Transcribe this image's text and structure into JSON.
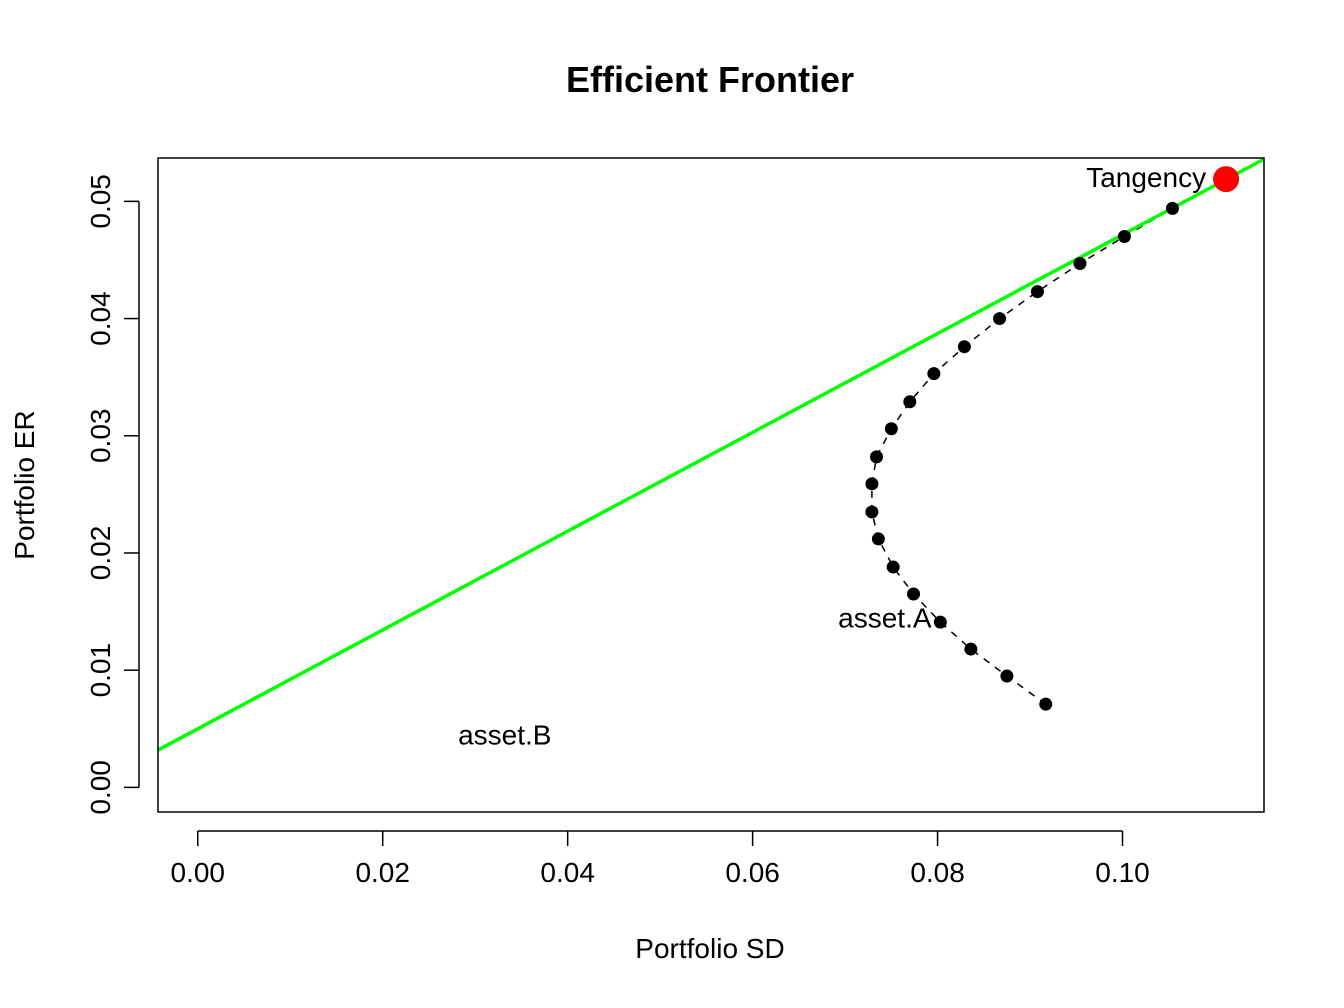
{
  "chart_data": {
    "type": "scatter",
    "title": "Efficient Frontier",
    "xlabel": "Portfolio SD",
    "ylabel": "Portfolio ER",
    "xlim": [
      -0.0043,
      0.1153
    ],
    "ylim": [
      -0.0021,
      0.0537
    ],
    "xticks": [
      0.0,
      0.02,
      0.04,
      0.06,
      0.08,
      0.1
    ],
    "xtick_labels": [
      "0.00",
      "0.02",
      "0.04",
      "0.06",
      "0.08",
      "0.10"
    ],
    "yticks": [
      0.0,
      0.01,
      0.02,
      0.03,
      0.04,
      0.05
    ],
    "ytick_labels": [
      "0.00",
      "0.01",
      "0.02",
      "0.03",
      "0.04",
      "0.05"
    ],
    "grid": false,
    "frontier": {
      "color": "#000000",
      "line_style": "dashed",
      "x": [
        0.0917,
        0.0875,
        0.0836,
        0.0803,
        0.0774,
        0.0752,
        0.0736,
        0.0729,
        0.0729,
        0.0734,
        0.075,
        0.077,
        0.0796,
        0.0829,
        0.0867,
        0.0908,
        0.0954,
        0.1002,
        0.1054
      ],
      "y": [
        0.0071,
        0.0095,
        0.0118,
        0.0141,
        0.0165,
        0.0188,
        0.0212,
        0.0235,
        0.0259,
        0.0282,
        0.0306,
        0.0329,
        0.0353,
        0.0376,
        0.04,
        0.0423,
        0.0447,
        0.047,
        0.0494
      ]
    },
    "tangency": {
      "label": "Tangency",
      "x": 0.1112,
      "y": 0.0519,
      "color": "#ff0000"
    },
    "asset_labels": [
      {
        "label": "asset.A",
        "x": 0.0743,
        "y": 0.0145
      },
      {
        "label": "asset.B",
        "x": 0.0332,
        "y": 0.0045
      }
    ],
    "tangency_line": {
      "color": "#00ff00",
      "intercept": 0.005,
      "slope": 0.4215
    }
  }
}
